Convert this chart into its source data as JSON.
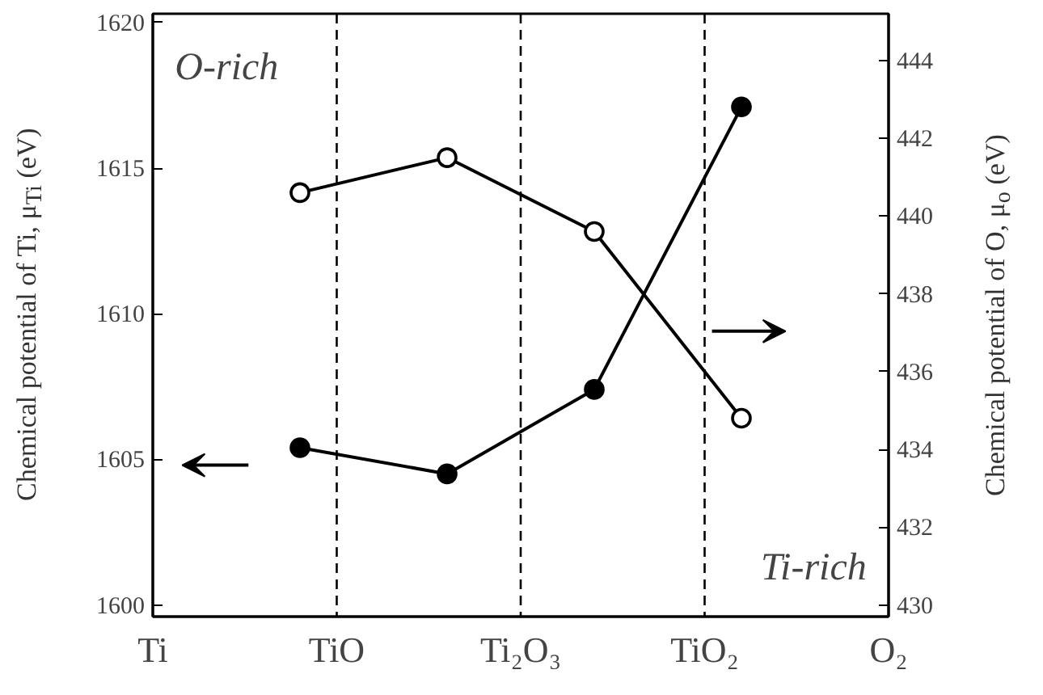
{
  "chart_data": {
    "type": "line",
    "ylabel": "Chemical potential of Ti, μ$_{Ti}$ (eV)",
    "y2label": "Chemical potential of O, μ$_{o}$ (eV)",
    "categories": [
      null,
      null,
      null,
      null
    ],
    "series": [
      {
        "color": "#000000",
        "marker": "circle",
        "values": [
          1605.4,
          1604.5,
          1607.4,
          1617.1
        ]
      },
      {
        "color": "#000000",
        "marker": "circle_open",
        "axis": "y2",
        "values": [
          440.6,
          441.5,
          439.6,
          434.8
        ]
      }
    ],
    "ylim": [
      1599.6,
      1620.3
    ],
    "yticks": [
      1600,
      1605,
      1610,
      1615,
      1620
    ],
    "y2lim": [
      429.7,
      445.2
    ],
    "y2ticks": [
      430,
      432,
      434,
      436,
      438,
      440,
      442,
      444
    ],
    "annotations": [
      "O-rich",
      "Ti-rich",
      "Ti",
      "TiO",
      "Ti₂O₃",
      "TiO₂",
      "O₂"
    ],
    "grid": false,
    "line_style": "solid"
  }
}
